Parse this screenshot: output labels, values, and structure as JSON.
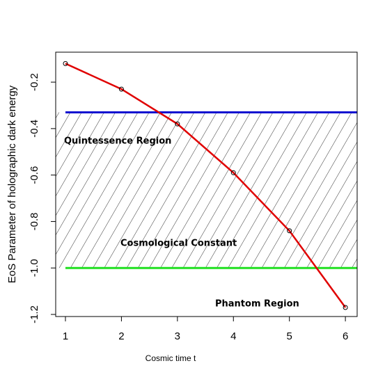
{
  "chart_data": {
    "type": "line",
    "x_label": "Cosmic time t",
    "y_label": "EoS Parameter of holographic dark energy",
    "x": [
      1,
      2,
      3,
      4,
      5,
      6
    ],
    "series": [
      {
        "color": "#e00000",
        "values": [
          -0.12,
          -0.23,
          -0.38,
          -0.59,
          -0.84,
          -1.17
        ]
      }
    ],
    "hlines": [
      {
        "value": -0.33,
        "color": "#1010d0"
      },
      {
        "value": -1.0,
        "color": "#20e020"
      }
    ],
    "annotations": [
      "Quintessence Region",
      "Cosmological Constant",
      "Phantom Region"
    ],
    "xlim": [
      0.826,
      6.21
    ],
    "ylim": [
      -1.209,
      -0.071
    ],
    "xticks": [
      1,
      2,
      3,
      4,
      5,
      6
    ],
    "yticks": [
      -0.2,
      -0.4,
      -0.6,
      -0.8,
      {
        "value": -1.0,
        "label": "-1.0"
      },
      -1.2
    ]
  }
}
